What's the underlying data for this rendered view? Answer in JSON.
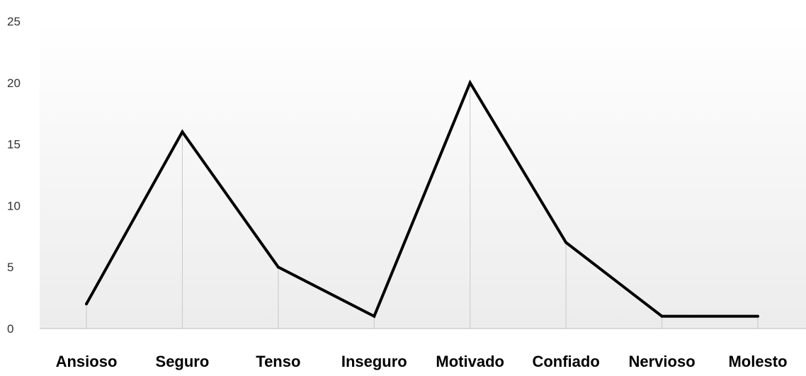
{
  "chart_data": {
    "type": "line",
    "title": "",
    "xlabel": "",
    "ylabel": "",
    "categories": [
      "Ansioso",
      "Seguro",
      "Tenso",
      "Inseguro",
      "Motivado",
      "Confiado",
      "Nervioso",
      "Molesto"
    ],
    "series": [
      {
        "values": [
          2,
          16,
          5,
          1,
          20,
          7,
          1,
          1
        ],
        "color": "#000000"
      }
    ],
    "ylim": [
      0,
      25
    ],
    "yticks": [
      0,
      5,
      10,
      15,
      20,
      25
    ],
    "grid": "vertical drop lines at each category",
    "legend": "none",
    "colors": {
      "line": "#000000",
      "gridline": "#c8c8c8",
      "axis": "#bdbdbd",
      "background_top": "#ffffff",
      "background_bottom": "#ececec"
    }
  }
}
